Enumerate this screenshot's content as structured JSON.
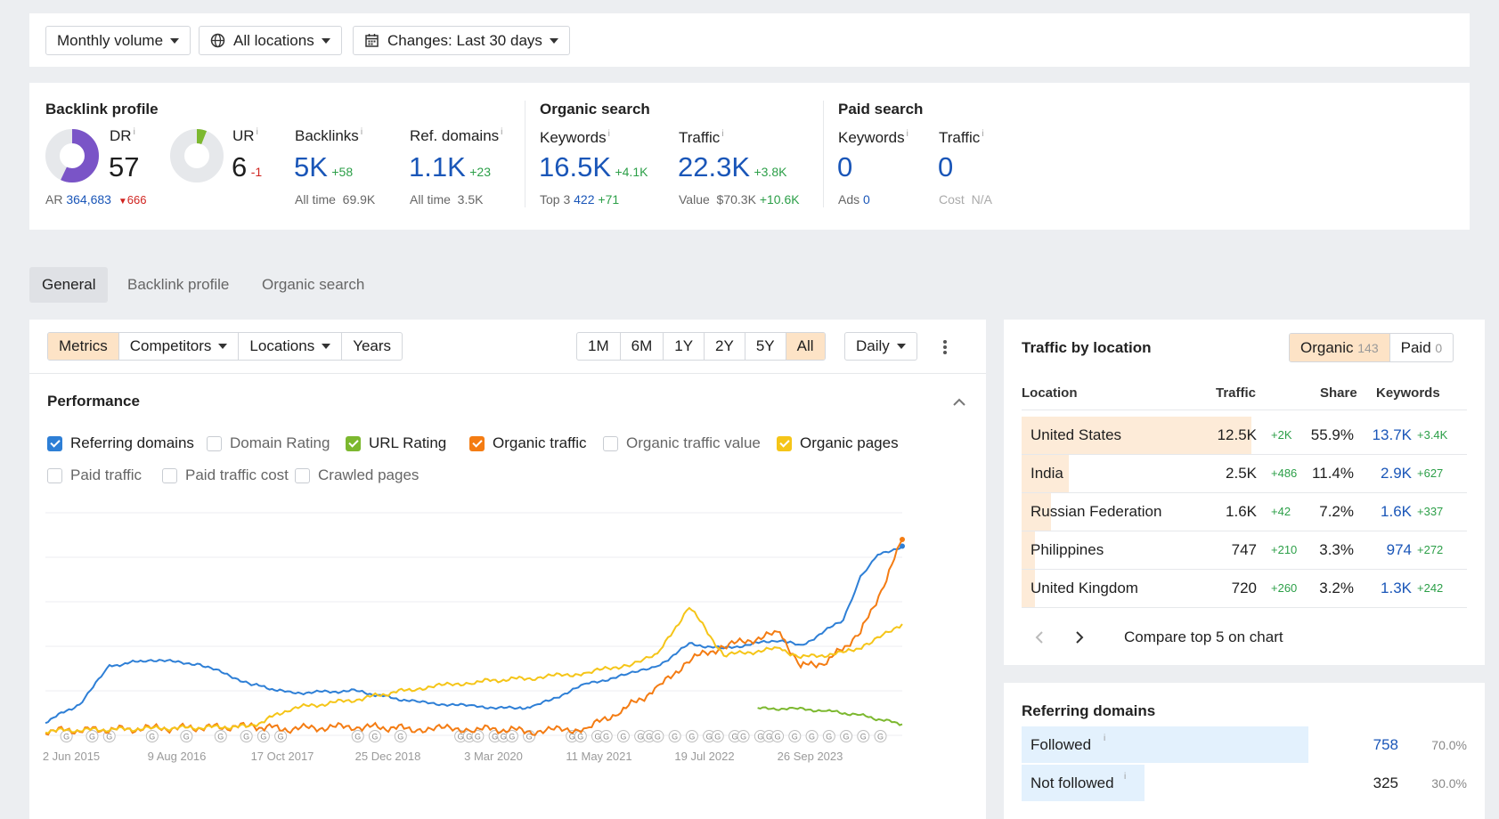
{
  "filters": {
    "volume": "Monthly volume",
    "locations": "All locations",
    "changes": "Changes: Last 30 days"
  },
  "backlink_profile": {
    "title": "Backlink profile",
    "dr_label": "DR",
    "dr_value": "57",
    "dr_fraction": 0.57,
    "ar_label": "AR",
    "ar_value": "364,683",
    "ar_change": "666",
    "ur_label": "UR",
    "ur_value": "6",
    "ur_change": "-1",
    "ur_fraction": 0.06,
    "backlinks_label": "Backlinks",
    "backlinks_value": "5K",
    "backlinks_change": "+58",
    "backlinks_alltime": "All time  69.9K",
    "refdomains_label": "Ref. domains",
    "refdomains_value": "1.1K",
    "refdomains_change": "+23",
    "refdomains_alltime": "All time  3.5K"
  },
  "organic_search": {
    "title": "Organic search",
    "keywords_label": "Keywords",
    "keywords_value": "16.5K",
    "keywords_change": "+4.1K",
    "top3_label": "Top 3",
    "top3_value": "422",
    "top3_change": "+71",
    "traffic_label": "Traffic",
    "traffic_value": "22.3K",
    "traffic_change": "+3.8K",
    "value_label": "Value  $70.3K",
    "value_change": "+10.6K"
  },
  "paid_search": {
    "title": "Paid search",
    "keywords_label": "Keywords",
    "keywords_value": "0",
    "ads_label": "Ads",
    "ads_value": "0",
    "traffic_label": "Traffic",
    "traffic_value": "0",
    "cost_label": "Cost  N/A"
  },
  "tabs": [
    "General",
    "Backlink profile",
    "Organic search"
  ],
  "chart_toolbar": {
    "left": [
      "Metrics",
      "Competitors",
      "Locations",
      "Years"
    ],
    "ranges": [
      "1M",
      "6M",
      "1Y",
      "2Y",
      "5Y",
      "All"
    ],
    "interval": "Daily"
  },
  "performance": {
    "title": "Performance",
    "metrics": [
      {
        "label": "Referring domains",
        "checked": true,
        "color": "#2e7fd6"
      },
      {
        "label": "Domain Rating",
        "checked": false,
        "color": ""
      },
      {
        "label": "URL Rating",
        "checked": true,
        "color": "#7cb82f"
      },
      {
        "label": "Organic traffic",
        "checked": true,
        "color": "#f47c13"
      },
      {
        "label": "Organic traffic value",
        "checked": false,
        "color": ""
      },
      {
        "label": "Organic pages",
        "checked": true,
        "color": "#f5c518"
      },
      {
        "label": "Paid traffic",
        "checked": false,
        "color": ""
      },
      {
        "label": "Paid traffic cost",
        "checked": false,
        "color": ""
      },
      {
        "label": "Crawled pages",
        "checked": false,
        "color": ""
      }
    ]
  },
  "chart_data": {
    "type": "line",
    "x_ticks": [
      "2 Jun 2015",
      "9 Aug 2016",
      "17 Oct 2017",
      "25 Dec 2018",
      "3 Mar 2020",
      "11 May 2021",
      "19 Jul 2022",
      "26 Sep 2023"
    ],
    "x_range": [
      "2015-06-02",
      "2023-09-26"
    ],
    "y_axis": "hidden",
    "grid": true,
    "series": [
      {
        "name": "Referring domains",
        "color": "#2e7fd6",
        "x": [
          "2015-06-02",
          "2015-10-01",
          "2016-01-15",
          "2016-06-01",
          "2016-12-01",
          "2017-06-01",
          "2017-10-17",
          "2018-06-01",
          "2019-01-01",
          "2019-08-01",
          "2020-01-01",
          "2020-03-03",
          "2020-09-01",
          "2021-02-01",
          "2021-05-11",
          "2021-09-01",
          "2022-01-01",
          "2022-07-19",
          "2022-10-01",
          "2023-03-01",
          "2023-05-01",
          "2023-07-01",
          "2023-09-26"
        ],
        "values": [
          0.12,
          0.28,
          0.62,
          0.68,
          0.64,
          0.46,
          0.38,
          0.4,
          0.3,
          0.26,
          0.24,
          0.26,
          0.46,
          0.55,
          0.62,
          0.82,
          0.78,
          0.86,
          0.8,
          1.04,
          1.42,
          1.62,
          1.7
        ]
      },
      {
        "name": "URL Rating",
        "color": "#7cb82f",
        "x": [
          "2022-05-01",
          "2022-09-01",
          "2023-01-01",
          "2023-05-01",
          "2023-09-26"
        ],
        "values": [
          0.24,
          0.24,
          0.22,
          0.18,
          0.1
        ]
      },
      {
        "name": "Organic traffic",
        "color": "#f47c13",
        "x": [
          "2015-06-02",
          "2016-06-01",
          "2017-06-01",
          "2017-10-17",
          "2018-06-01",
          "2019-01-01",
          "2019-08-01",
          "2020-03-03",
          "2020-09-01",
          "2021-01-01",
          "2021-05-11",
          "2021-09-01",
          "2022-01-01",
          "2022-07-19",
          "2022-10-01",
          "2023-01-01",
          "2023-05-01",
          "2023-08-01",
          "2023-09-26"
        ],
        "values": [
          0.04,
          0.06,
          0.08,
          0.06,
          0.08,
          0.06,
          0.06,
          0.04,
          0.06,
          0.22,
          0.42,
          0.68,
          0.8,
          0.92,
          0.62,
          0.66,
          0.92,
          1.4,
          1.76
        ]
      },
      {
        "name": "Organic pages",
        "color": "#f5c518",
        "x": [
          "2015-06-02",
          "2016-06-01",
          "2017-06-01",
          "2017-10-17",
          "2018-06-01",
          "2019-01-01",
          "2019-08-01",
          "2020-03-03",
          "2020-09-01",
          "2021-02-01",
          "2021-05-11",
          "2021-09-01",
          "2022-01-01",
          "2022-07-19",
          "2022-10-01",
          "2023-03-01",
          "2023-06-01",
          "2023-09-26"
        ],
        "values": [
          0.04,
          0.06,
          0.08,
          0.24,
          0.32,
          0.42,
          0.48,
          0.52,
          0.56,
          0.64,
          0.72,
          1.16,
          0.72,
          0.78,
          0.7,
          0.74,
          0.82,
          1.0
        ]
      }
    ]
  },
  "traffic_by_location": {
    "title": "Traffic by location",
    "toggle_organic": "Organic",
    "toggle_organic_count": "143",
    "toggle_paid": "Paid",
    "toggle_paid_count": "0",
    "headers": {
      "location": "Location",
      "traffic": "Traffic",
      "share": "Share",
      "keywords": "Keywords"
    },
    "rows": [
      {
        "location": "United States",
        "traffic": "12.5K",
        "traffic_change": "+2K",
        "share": "55.9%",
        "share_fraction": 0.559,
        "keywords": "13.7K",
        "keywords_change": "+3.4K"
      },
      {
        "location": "India",
        "traffic": "2.5K",
        "traffic_change": "+486",
        "share": "11.4%",
        "share_fraction": 0.114,
        "keywords": "2.9K",
        "keywords_change": "+627"
      },
      {
        "location": "Russian Federation",
        "traffic": "1.6K",
        "traffic_change": "+42",
        "share": "7.2%",
        "share_fraction": 0.072,
        "keywords": "1.6K",
        "keywords_change": "+337"
      },
      {
        "location": "Philippines",
        "traffic": "747",
        "traffic_change": "+210",
        "share": "3.3%",
        "share_fraction": 0.033,
        "keywords": "974",
        "keywords_change": "+272"
      },
      {
        "location": "United Kingdom",
        "traffic": "720",
        "traffic_change": "+260",
        "share": "3.2%",
        "share_fraction": 0.032,
        "keywords": "1.3K",
        "keywords_change": "+242"
      }
    ],
    "compare_label": "Compare top 5 on chart"
  },
  "referring_domains": {
    "title": "Referring domains",
    "rows": [
      {
        "label": "Followed",
        "value": "758",
        "share": "70.0%",
        "fraction": 0.7
      },
      {
        "label": "Not followed",
        "value": "325",
        "share": "30.0%",
        "fraction": 0.3
      }
    ]
  }
}
